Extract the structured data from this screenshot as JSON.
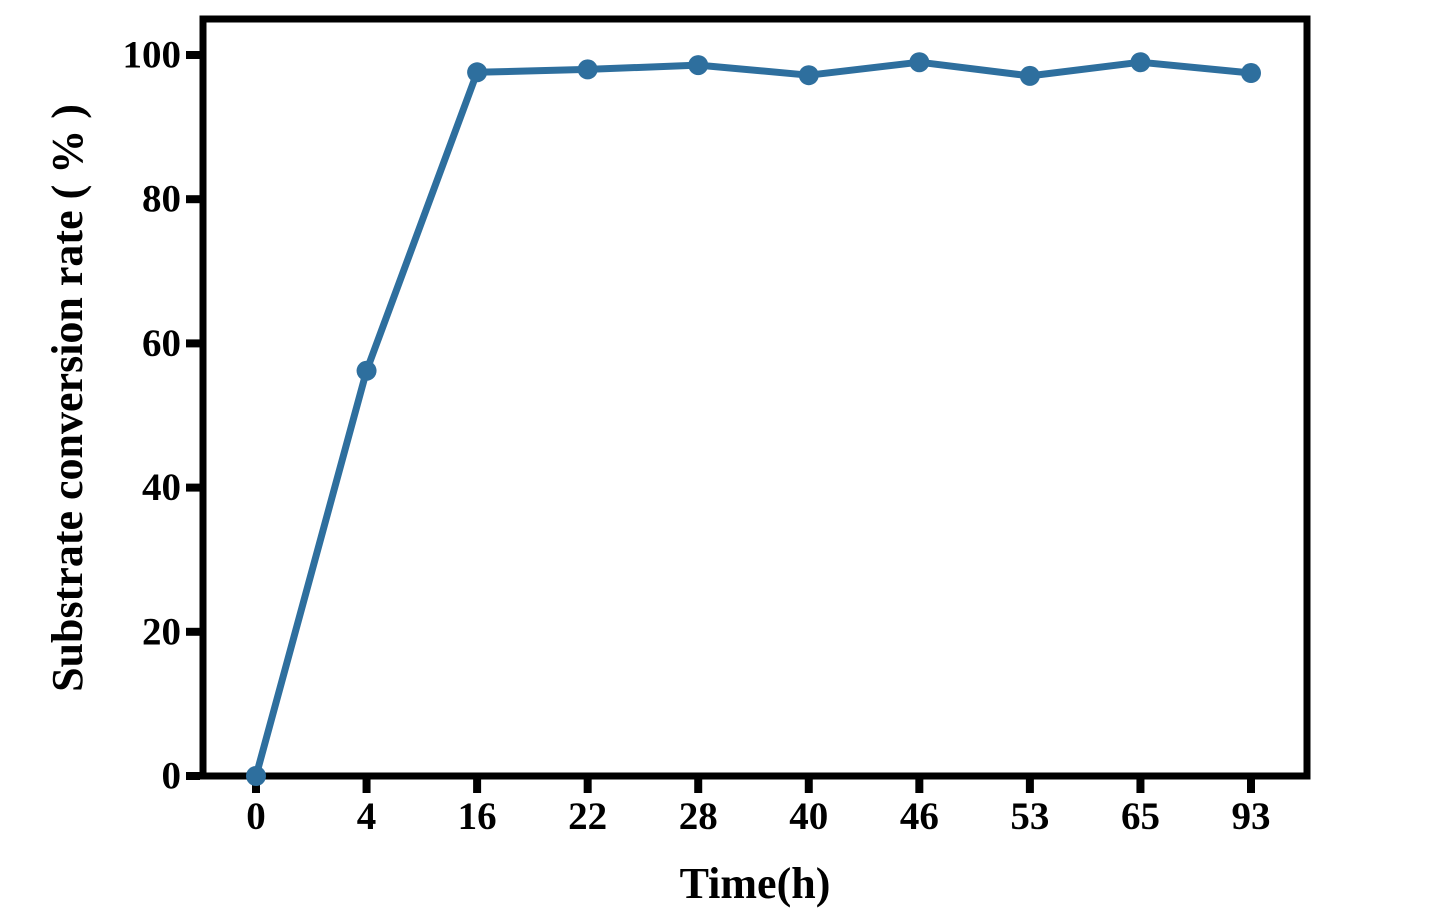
{
  "chart_data": {
    "type": "line",
    "categories": [
      "0",
      "4",
      "16",
      "22",
      "28",
      "40",
      "46",
      "53",
      "65",
      "93"
    ],
    "series": [
      {
        "name": "Substrate conversion rate",
        "values": [
          0,
          56.2,
          97.6,
          98.0,
          98.6,
          97.2,
          99.0,
          97.1,
          99.0,
          97.5
        ]
      }
    ],
    "title": "",
    "xlabel": "Time(h)",
    "ylabel": "Substrate conversion rate ( % )",
    "ylim": [
      0,
      105
    ],
    "yticks": [
      0,
      20,
      40,
      60,
      80,
      100
    ],
    "grid": false,
    "legend_position": "none",
    "line_color": "#2e6f9e",
    "marker": "circle",
    "marker_color": "#2e6f9e",
    "axis_color": "#000000",
    "background_color": "#ffffff"
  }
}
